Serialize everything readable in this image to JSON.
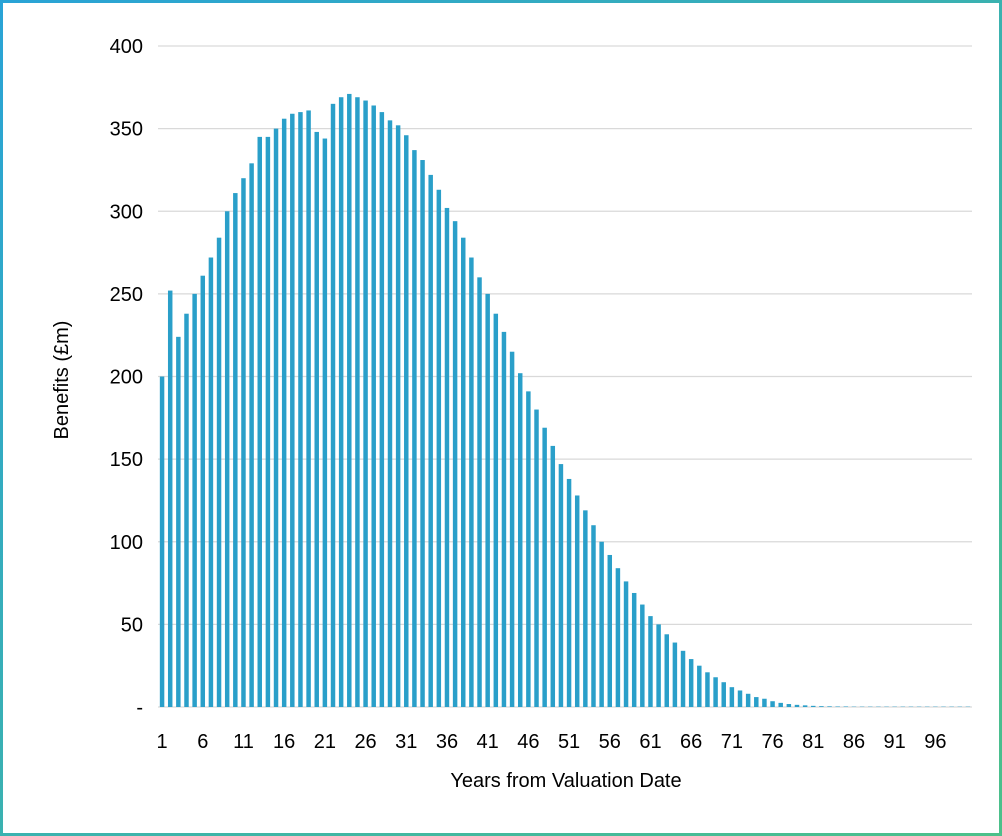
{
  "chart_data": {
    "type": "bar",
    "xlabel": "Years from Valuation Date",
    "ylabel": "Benefits (£m)",
    "ylim": [
      0,
      400
    ],
    "yticks": [
      0,
      50,
      100,
      150,
      200,
      250,
      300,
      350,
      400
    ],
    "ytick_labels": [
      "-",
      "50",
      "100",
      "150",
      "200",
      "250",
      "300",
      "350",
      "400"
    ],
    "xtick_labels": [
      "1",
      "6",
      "11",
      "16",
      "21",
      "26",
      "31",
      "36",
      "41",
      "46",
      "51",
      "56",
      "61",
      "66",
      "71",
      "76",
      "81",
      "86",
      "91",
      "96"
    ],
    "grid": true,
    "categories": [
      1,
      2,
      3,
      4,
      5,
      6,
      7,
      8,
      9,
      10,
      11,
      12,
      13,
      14,
      15,
      16,
      17,
      18,
      19,
      20,
      21,
      22,
      23,
      24,
      25,
      26,
      27,
      28,
      29,
      30,
      31,
      32,
      33,
      34,
      35,
      36,
      37,
      38,
      39,
      40,
      41,
      42,
      43,
      44,
      45,
      46,
      47,
      48,
      49,
      50,
      51,
      52,
      53,
      54,
      55,
      56,
      57,
      58,
      59,
      60,
      61,
      62,
      63,
      64,
      65,
      66,
      67,
      68,
      69,
      70,
      71,
      72,
      73,
      74,
      75,
      76,
      77,
      78,
      79,
      80,
      81,
      82,
      83,
      84,
      85,
      86,
      87,
      88,
      89,
      90,
      91,
      92,
      93,
      94,
      95,
      96,
      97,
      98,
      99,
      100
    ],
    "values": [
      200,
      252,
      224,
      238,
      250,
      261,
      272,
      284,
      300,
      311,
      320,
      329,
      345,
      345,
      350,
      356,
      359,
      360,
      361,
      348,
      344,
      365,
      369,
      371,
      369,
      367,
      364,
      360,
      355,
      352,
      346,
      337,
      331,
      322,
      313,
      302,
      294,
      284,
      272,
      260,
      250,
      238,
      227,
      215,
      202,
      191,
      180,
      169,
      158,
      147,
      138,
      128,
      119,
      110,
      100,
      92,
      84,
      76,
      69,
      62,
      55,
      50,
      44,
      39,
      34,
      29,
      25,
      21,
      18,
      15,
      12,
      10,
      8,
      6,
      5,
      3.5,
      2.5,
      1.8,
      1.3,
      1.0,
      0.7,
      0.5,
      0.4,
      0.3,
      0.3,
      0.2,
      0.2,
      0.2,
      0.2,
      0.2,
      0.2,
      0.2,
      0.2,
      0.2,
      0.2,
      0.2,
      0.2,
      0.2,
      0.2,
      0.2
    ],
    "colors": {
      "bar": "#2a9fc9",
      "grid": "#d9d9d9",
      "frame_start": "#29a3d6",
      "frame_end": "#4cc08a"
    }
  }
}
